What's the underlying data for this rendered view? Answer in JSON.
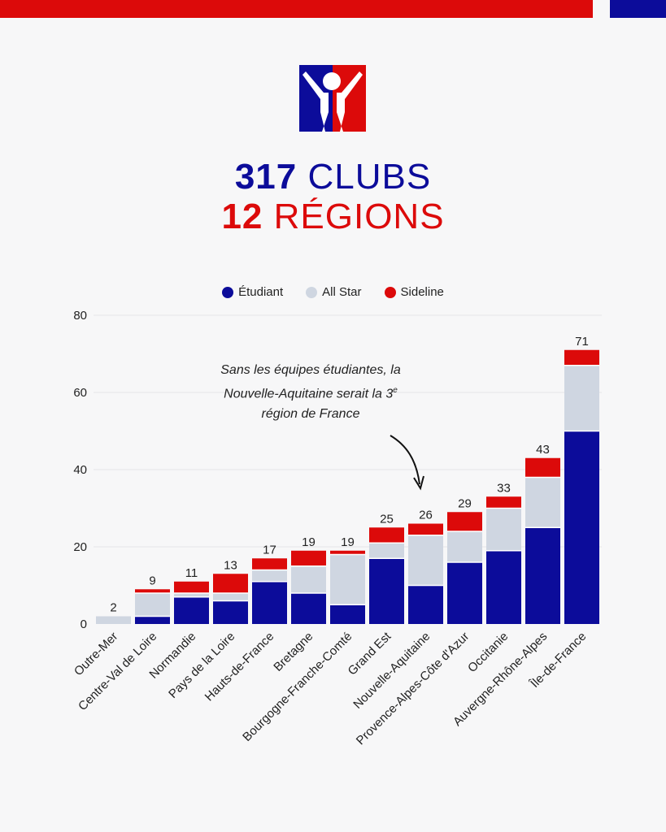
{
  "headline": {
    "line1_number": "317",
    "line1_word": "CLUBS",
    "line2_number": "12",
    "line2_word": "RÉGIONS"
  },
  "colors": {
    "etudiant": "#0c0c9a",
    "all_star": "#cfd6e1",
    "sideline": "#dc0a0a"
  },
  "annotation": {
    "text_before": "Sans les équipes étudiantes,  la Nouvelle-Aquitaine serait la 3",
    "superscript": "e",
    "text_after": " région de France"
  },
  "chart_data": {
    "type": "bar",
    "stacked": true,
    "legend_position": "top",
    "grid": true,
    "ylim": [
      0,
      80
    ],
    "yticks": [
      0,
      20,
      40,
      60,
      80
    ],
    "categories": [
      "Outre-Mer",
      "Centre-Val de Loire",
      "Normandie",
      "Pays de la Loire",
      "Hauts-de-France",
      "Bretagne",
      "Bourgogne-Franche-Comté",
      "Grand Est",
      "Nouvelle-Aquitaine",
      "Provence-Alpes-Côte d'Azur",
      "Occitanie",
      "Auvergne-Rhône-Alpes",
      "Île-de-France"
    ],
    "totals": [
      2,
      9,
      11,
      13,
      17,
      19,
      19,
      25,
      26,
      29,
      33,
      43,
      71
    ],
    "series": [
      {
        "name": "Étudiant",
        "color": "#0c0c9a",
        "values": [
          0,
          2,
          7,
          6,
          11,
          8,
          5,
          17,
          10,
          16,
          19,
          25,
          50
        ]
      },
      {
        "name": "All Star",
        "color": "#cfd6e1",
        "values": [
          2,
          6,
          1,
          2,
          3,
          7,
          13,
          4,
          13,
          8,
          11,
          13,
          17
        ]
      },
      {
        "name": "Sideline",
        "color": "#dc0a0a",
        "values": [
          0,
          1,
          3,
          5,
          3,
          4,
          1,
          4,
          3,
          5,
          3,
          5,
          4
        ]
      }
    ]
  }
}
